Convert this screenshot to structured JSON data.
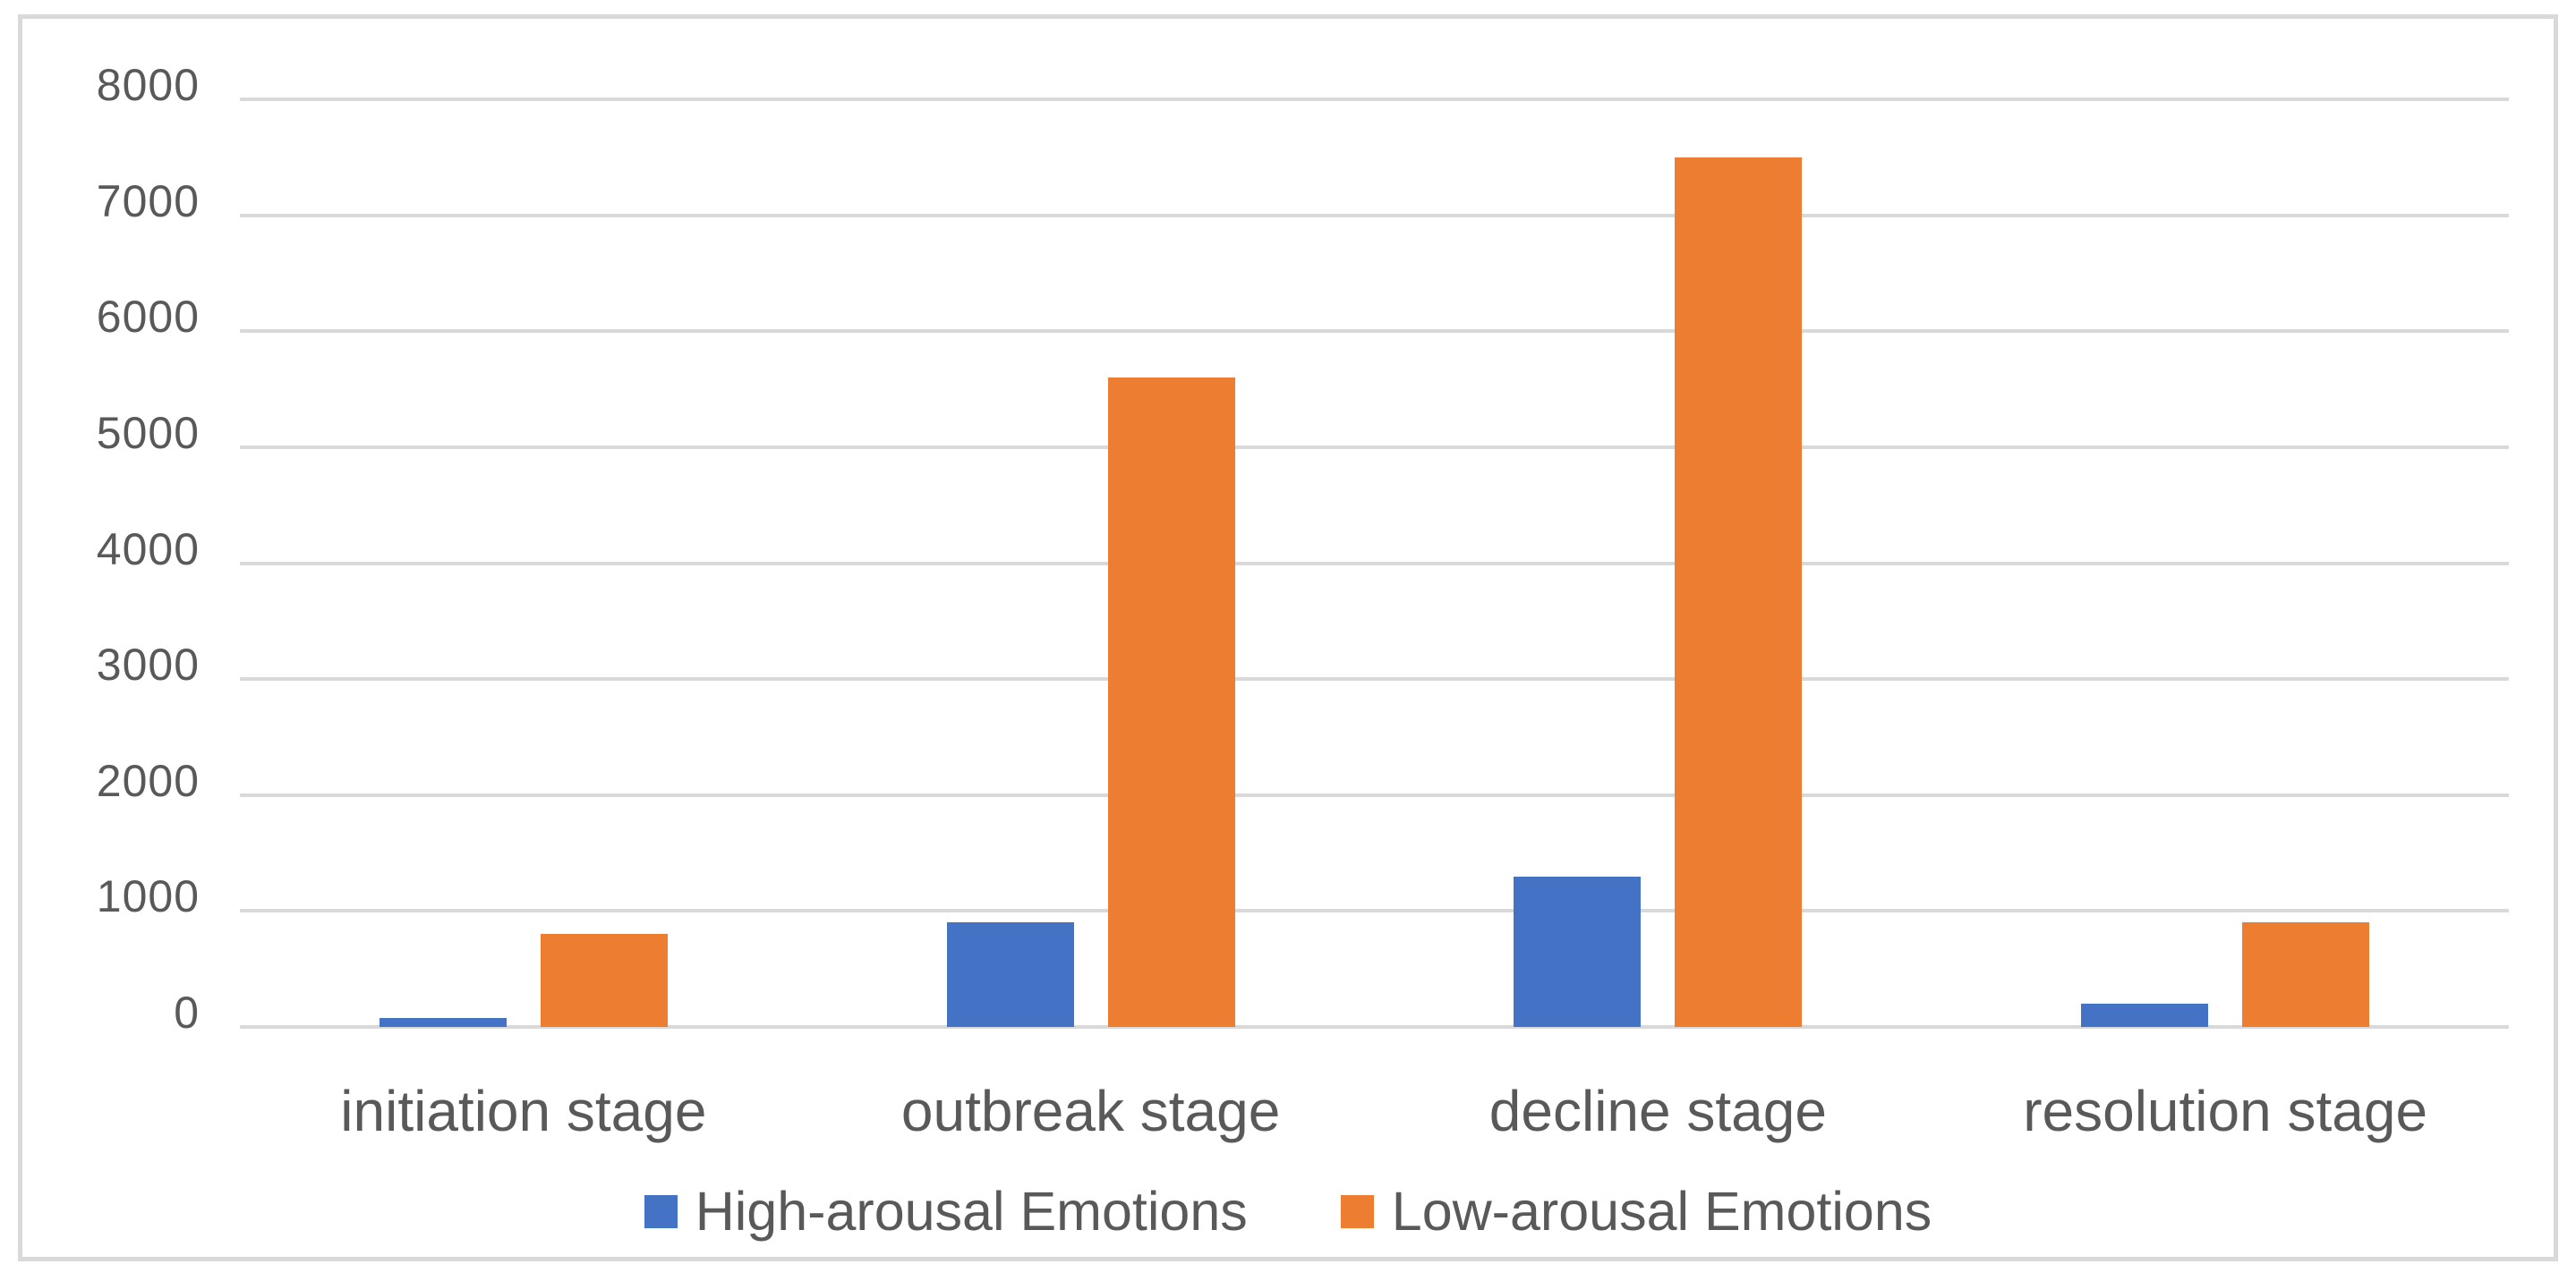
{
  "frame": {
    "background_color": "#ffffff",
    "border_color": "#d9d9d9"
  },
  "chart_data": {
    "type": "bar",
    "title": "",
    "categories": [
      "initiation stage",
      "outbreak stage",
      "decline stage",
      "resolution stage"
    ],
    "series": [
      {
        "name": "High-arousal Emotions",
        "color": "#4472C4",
        "values": [
          80,
          900,
          1300,
          200
        ]
      },
      {
        "name": "Low-arousal Emotions",
        "color": "#ED7D31",
        "values": [
          800,
          5600,
          7500,
          900
        ]
      }
    ],
    "xlabel": "",
    "ylabel": "",
    "ylim": [
      0,
      8000
    ],
    "ytick_step": 1000,
    "ytick_labels": [
      "0",
      "1000",
      "2000",
      "3000",
      "4000",
      "5000",
      "6000",
      "7000",
      "8000"
    ],
    "grid": true,
    "gridline_color": "#d9d9d9",
    "axis_text_color": "#595959",
    "legend_position": "bottom",
    "legend_labels": [
      "High-arousal Emotions",
      "Low-arousal Emotions"
    ]
  }
}
